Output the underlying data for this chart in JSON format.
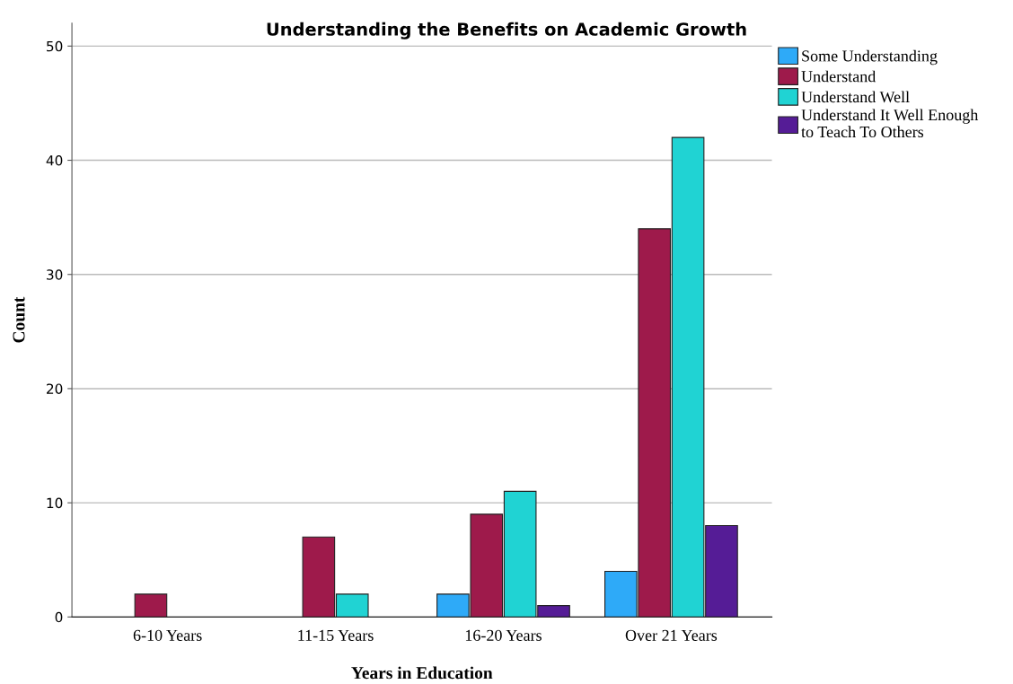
{
  "chart_data": {
    "type": "bar",
    "title": "Understanding the Benefits on Academic Growth",
    "xlabel": "Years in Education",
    "ylabel": "Count",
    "categories": [
      "6-10 Years",
      "11-15 Years",
      "16-20 Years",
      "Over 21 Years"
    ],
    "series": [
      {
        "name": "Some Understanding",
        "color": "#2eaaf8",
        "values": [
          null,
          null,
          2,
          4
        ]
      },
      {
        "name": "Understand",
        "color": "#9e1a4b",
        "values": [
          2,
          7,
          9,
          34
        ]
      },
      {
        "name": "Understand Well",
        "color": "#20d3d3",
        "values": [
          null,
          2,
          11,
          42
        ]
      },
      {
        "name": "Understand It Well Enough\nto Teach To Others",
        "color": "#551c96",
        "values": [
          null,
          null,
          1,
          8
        ]
      }
    ],
    "ylim": [
      0,
      52
    ],
    "yticks": [
      0,
      10,
      20,
      30,
      40,
      50
    ],
    "grid": "y",
    "legend": "top right"
  }
}
